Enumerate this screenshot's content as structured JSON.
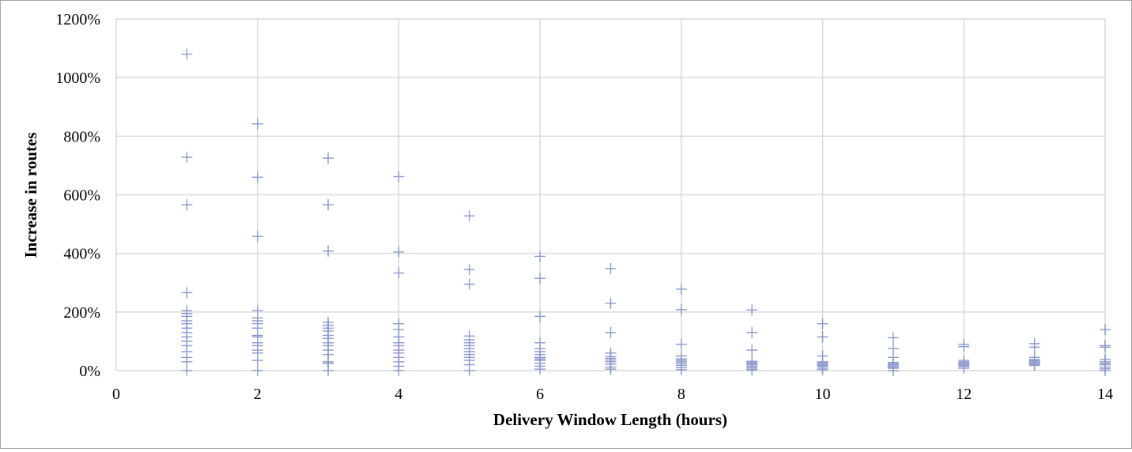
{
  "chart_data": {
    "type": "scatter",
    "title": "",
    "xlabel": "Delivery Window Length (hours)",
    "ylabel": "Increase in routes",
    "xlim": [
      0,
      14
    ],
    "ylim": [
      0,
      1200
    ],
    "x_ticks": [
      0,
      2,
      4,
      6,
      8,
      10,
      12,
      14
    ],
    "x_tick_labels": [
      "0",
      "2",
      "4",
      "6",
      "8",
      "10",
      "12",
      "14"
    ],
    "y_ticks": [
      0,
      200,
      400,
      600,
      800,
      1000,
      1200
    ],
    "y_tick_labels": [
      "0%",
      "200%",
      "400%",
      "600%",
      "800%",
      "1000%",
      "1200%"
    ],
    "y_unit": "%",
    "grid": true,
    "legend": "none",
    "marker": "plus",
    "marker_color": "#8b9ad0",
    "series": [
      {
        "points": [
          {
            "x": 1,
            "y": 1080
          },
          {
            "x": 1,
            "y": 728
          },
          {
            "x": 1,
            "y": 566
          },
          {
            "x": 1,
            "y": 266
          },
          {
            "x": 1,
            "y": 205
          },
          {
            "x": 1,
            "y": 195
          },
          {
            "x": 1,
            "y": 185
          },
          {
            "x": 1,
            "y": 170
          },
          {
            "x": 1,
            "y": 160
          },
          {
            "x": 1,
            "y": 145
          },
          {
            "x": 1,
            "y": 130
          },
          {
            "x": 1,
            "y": 115
          },
          {
            "x": 1,
            "y": 100
          },
          {
            "x": 1,
            "y": 85
          },
          {
            "x": 1,
            "y": 65
          },
          {
            "x": 1,
            "y": 45
          },
          {
            "x": 1,
            "y": 30
          },
          {
            "x": 1,
            "y": 0
          },
          {
            "x": 2,
            "y": 842
          },
          {
            "x": 2,
            "y": 660
          },
          {
            "x": 2,
            "y": 458
          },
          {
            "x": 2,
            "y": 205
          },
          {
            "x": 2,
            "y": 180
          },
          {
            "x": 2,
            "y": 170
          },
          {
            "x": 2,
            "y": 160
          },
          {
            "x": 2,
            "y": 145
          },
          {
            "x": 2,
            "y": 120
          },
          {
            "x": 2,
            "y": 115
          },
          {
            "x": 2,
            "y": 95
          },
          {
            "x": 2,
            "y": 85
          },
          {
            "x": 2,
            "y": 70
          },
          {
            "x": 2,
            "y": 60
          },
          {
            "x": 2,
            "y": 35
          },
          {
            "x": 2,
            "y": 0
          },
          {
            "x": 3,
            "y": 725
          },
          {
            "x": 3,
            "y": 566
          },
          {
            "x": 3,
            "y": 408
          },
          {
            "x": 3,
            "y": 165
          },
          {
            "x": 3,
            "y": 155
          },
          {
            "x": 3,
            "y": 145
          },
          {
            "x": 3,
            "y": 135
          },
          {
            "x": 3,
            "y": 120
          },
          {
            "x": 3,
            "y": 110
          },
          {
            "x": 3,
            "y": 95
          },
          {
            "x": 3,
            "y": 85
          },
          {
            "x": 3,
            "y": 70
          },
          {
            "x": 3,
            "y": 55
          },
          {
            "x": 3,
            "y": 30
          },
          {
            "x": 3,
            "y": 25
          },
          {
            "x": 3,
            "y": 0
          },
          {
            "x": 4,
            "y": 662
          },
          {
            "x": 4,
            "y": 405
          },
          {
            "x": 4,
            "y": 333
          },
          {
            "x": 4,
            "y": 160
          },
          {
            "x": 4,
            "y": 140
          },
          {
            "x": 4,
            "y": 115
          },
          {
            "x": 4,
            "y": 95
          },
          {
            "x": 4,
            "y": 85
          },
          {
            "x": 4,
            "y": 70
          },
          {
            "x": 4,
            "y": 60
          },
          {
            "x": 4,
            "y": 45
          },
          {
            "x": 4,
            "y": 30
          },
          {
            "x": 4,
            "y": 15
          },
          {
            "x": 4,
            "y": 0
          },
          {
            "x": 5,
            "y": 528
          },
          {
            "x": 5,
            "y": 345
          },
          {
            "x": 5,
            "y": 295
          },
          {
            "x": 5,
            "y": 118
          },
          {
            "x": 5,
            "y": 105
          },
          {
            "x": 5,
            "y": 95
          },
          {
            "x": 5,
            "y": 85
          },
          {
            "x": 5,
            "y": 75
          },
          {
            "x": 5,
            "y": 65
          },
          {
            "x": 5,
            "y": 55
          },
          {
            "x": 5,
            "y": 45
          },
          {
            "x": 5,
            "y": 35
          },
          {
            "x": 5,
            "y": 20
          },
          {
            "x": 5,
            "y": 0
          },
          {
            "x": 6,
            "y": 390
          },
          {
            "x": 6,
            "y": 315
          },
          {
            "x": 6,
            "y": 185
          },
          {
            "x": 6,
            "y": 95
          },
          {
            "x": 6,
            "y": 75
          },
          {
            "x": 6,
            "y": 65
          },
          {
            "x": 6,
            "y": 55
          },
          {
            "x": 6,
            "y": 45
          },
          {
            "x": 6,
            "y": 40
          },
          {
            "x": 6,
            "y": 35
          },
          {
            "x": 6,
            "y": 25
          },
          {
            "x": 6,
            "y": 15
          },
          {
            "x": 6,
            "y": 5
          },
          {
            "x": 7,
            "y": 348
          },
          {
            "x": 7,
            "y": 230
          },
          {
            "x": 7,
            "y": 130
          },
          {
            "x": 7,
            "y": 60
          },
          {
            "x": 7,
            "y": 48
          },
          {
            "x": 7,
            "y": 42
          },
          {
            "x": 7,
            "y": 36
          },
          {
            "x": 7,
            "y": 30
          },
          {
            "x": 7,
            "y": 22
          },
          {
            "x": 7,
            "y": 12
          },
          {
            "x": 7,
            "y": 5
          },
          {
            "x": 8,
            "y": 278
          },
          {
            "x": 8,
            "y": 208
          },
          {
            "x": 8,
            "y": 90
          },
          {
            "x": 8,
            "y": 50
          },
          {
            "x": 8,
            "y": 40
          },
          {
            "x": 8,
            "y": 35
          },
          {
            "x": 8,
            "y": 30
          },
          {
            "x": 8,
            "y": 25
          },
          {
            "x": 8,
            "y": 18
          },
          {
            "x": 8,
            "y": 10
          },
          {
            "x": 8,
            "y": 3
          },
          {
            "x": 9,
            "y": 207
          },
          {
            "x": 9,
            "y": 130
          },
          {
            "x": 9,
            "y": 70
          },
          {
            "x": 9,
            "y": 32
          },
          {
            "x": 9,
            "y": 28
          },
          {
            "x": 9,
            "y": 24
          },
          {
            "x": 9,
            "y": 20
          },
          {
            "x": 9,
            "y": 15
          },
          {
            "x": 9,
            "y": 10
          },
          {
            "x": 9,
            "y": 5
          },
          {
            "x": 9,
            "y": 2
          },
          {
            "x": 10,
            "y": 160
          },
          {
            "x": 10,
            "y": 115
          },
          {
            "x": 10,
            "y": 50
          },
          {
            "x": 10,
            "y": 30
          },
          {
            "x": 10,
            "y": 26
          },
          {
            "x": 10,
            "y": 22
          },
          {
            "x": 10,
            "y": 18
          },
          {
            "x": 10,
            "y": 14
          },
          {
            "x": 10,
            "y": 8
          },
          {
            "x": 10,
            "y": 3
          },
          {
            "x": 11,
            "y": 112
          },
          {
            "x": 11,
            "y": 75
          },
          {
            "x": 11,
            "y": 45
          },
          {
            "x": 11,
            "y": 28
          },
          {
            "x": 11,
            "y": 24
          },
          {
            "x": 11,
            "y": 20
          },
          {
            "x": 11,
            "y": 16
          },
          {
            "x": 11,
            "y": 12
          },
          {
            "x": 11,
            "y": 8
          },
          {
            "x": 11,
            "y": 0
          },
          {
            "x": 12,
            "y": 90
          },
          {
            "x": 12,
            "y": 82
          },
          {
            "x": 12,
            "y": 35
          },
          {
            "x": 12,
            "y": 30
          },
          {
            "x": 12,
            "y": 26
          },
          {
            "x": 12,
            "y": 22
          },
          {
            "x": 12,
            "y": 18
          },
          {
            "x": 12,
            "y": 14
          },
          {
            "x": 12,
            "y": 8
          },
          {
            "x": 13,
            "y": 92
          },
          {
            "x": 13,
            "y": 80
          },
          {
            "x": 13,
            "y": 45
          },
          {
            "x": 13,
            "y": 38
          },
          {
            "x": 13,
            "y": 34
          },
          {
            "x": 13,
            "y": 30
          },
          {
            "x": 13,
            "y": 26
          },
          {
            "x": 13,
            "y": 22
          },
          {
            "x": 13,
            "y": 18
          },
          {
            "x": 14,
            "y": 140
          },
          {
            "x": 14,
            "y": 85
          },
          {
            "x": 14,
            "y": 80
          },
          {
            "x": 14,
            "y": 38
          },
          {
            "x": 14,
            "y": 30
          },
          {
            "x": 14,
            "y": 25
          },
          {
            "x": 14,
            "y": 20
          },
          {
            "x": 14,
            "y": 12
          },
          {
            "x": 14,
            "y": 6
          },
          {
            "x": 14,
            "y": 0
          }
        ]
      }
    ]
  }
}
